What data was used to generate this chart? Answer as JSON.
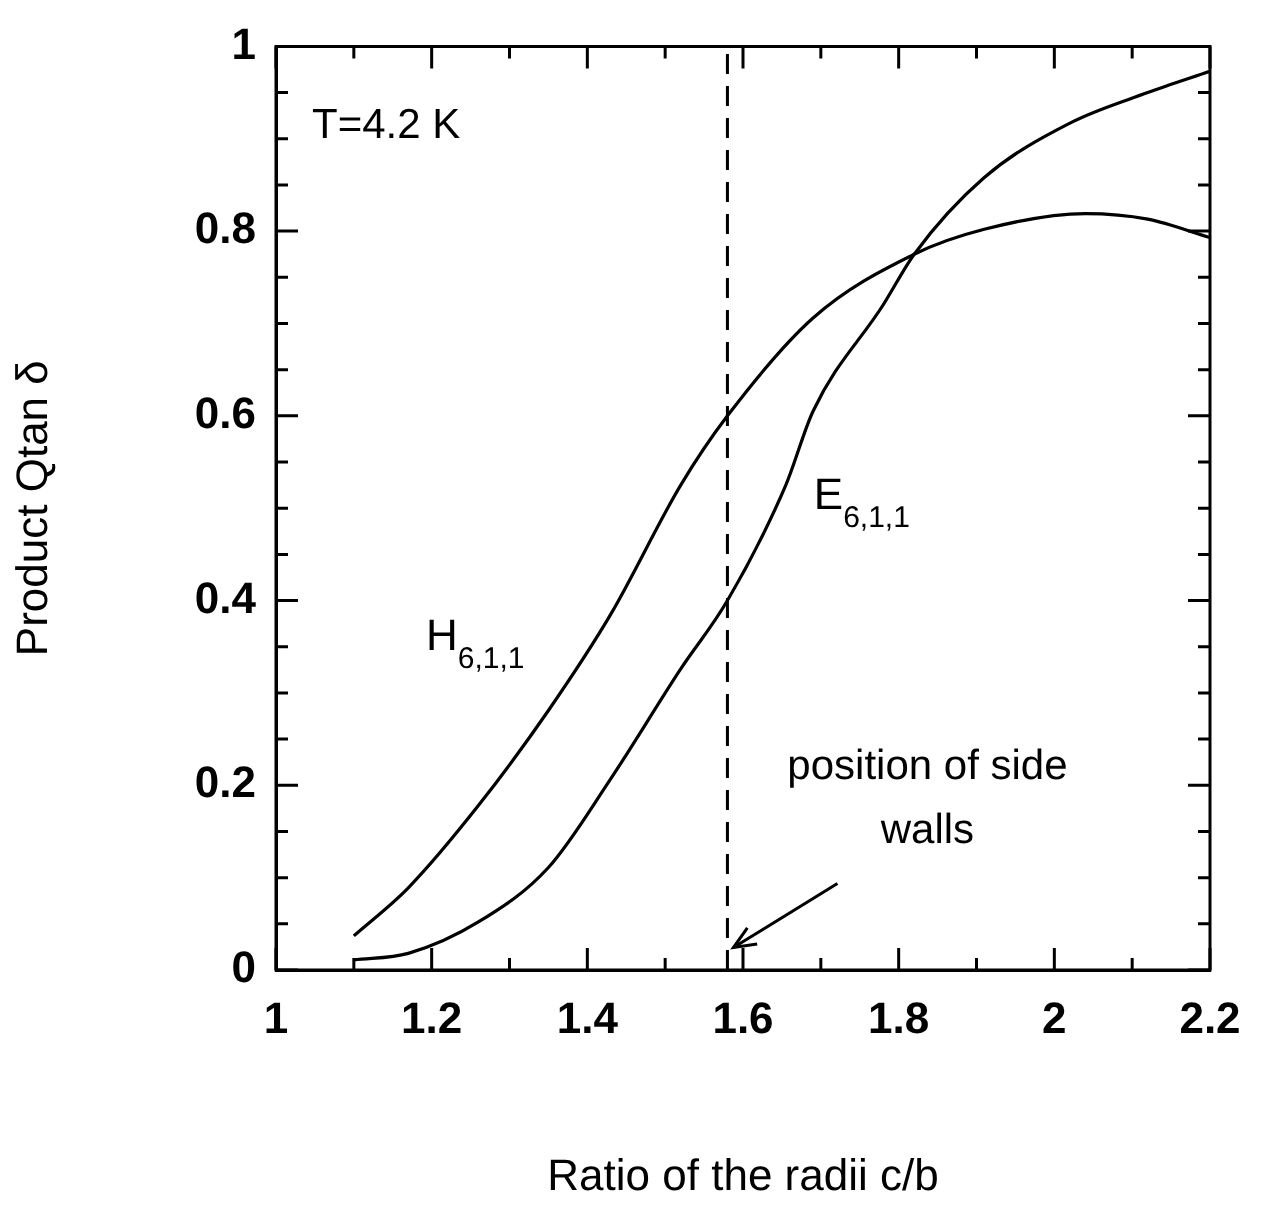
{
  "chart_data": {
    "type": "line",
    "xlabel": "Ratio of the radii c/b",
    "ylabel": "Product Qtan δ",
    "xlim": [
      1,
      2.2
    ],
    "ylim": [
      0,
      1
    ],
    "xticks": [
      1,
      {
        "value": 1.1,
        "label": null
      },
      1.2,
      {
        "value": 1.3,
        "label": null
      },
      1.4,
      {
        "value": 1.5,
        "label": null
      },
      1.6,
      {
        "value": 1.7,
        "label": null
      },
      1.8,
      {
        "value": 1.9,
        "label": null
      },
      2,
      {
        "value": 2.1,
        "label": null
      },
      2.2
    ],
    "yticks": [
      0,
      {
        "value": 0.05,
        "label": null
      },
      {
        "value": 0.1,
        "label": null
      },
      {
        "value": 0.15,
        "label": null
      },
      0.2,
      {
        "value": 0.25,
        "label": null
      },
      {
        "value": 0.3,
        "label": null
      },
      {
        "value": 0.35,
        "label": null
      },
      0.4,
      {
        "value": 0.45,
        "label": null
      },
      {
        "value": 0.5,
        "label": null
      },
      {
        "value": 0.55,
        "label": null
      },
      0.6,
      {
        "value": 0.65,
        "label": null
      },
      {
        "value": 0.7,
        "label": null
      },
      {
        "value": 0.75,
        "label": null
      },
      0.8,
      {
        "value": 0.85,
        "label": null
      },
      {
        "value": 0.9,
        "label": null
      },
      {
        "value": 0.95,
        "label": null
      },
      1
    ],
    "grid": false,
    "legend": false,
    "marker": "none",
    "line_style": "solid",
    "series": [
      {
        "name": "H$_{6,1,1}$",
        "color": "#000000",
        "x": [
          1.1,
          1.17,
          1.26,
          1.35,
          1.43,
          1.52,
          1.58,
          1.69,
          1.82,
          1.91,
          2.04,
          2.12,
          2.2
        ],
        "values": [
          0.037,
          0.089,
          0.178,
          0.281,
          0.385,
          0.525,
          0.6,
          0.706,
          0.775,
          0.802,
          0.819,
          0.813,
          0.793
        ]
      },
      {
        "name": "E$_{6,1,1}$",
        "color": "#000000",
        "x": [
          1.1,
          1.17,
          1.26,
          1.35,
          1.43,
          1.52,
          1.58,
          1.655,
          1.69,
          1.78,
          1.82,
          1.91,
          2.02,
          2.12,
          2.2
        ],
        "values": [
          0.011,
          0.018,
          0.052,
          0.111,
          0.207,
          0.326,
          0.4,
          0.525,
          0.605,
          0.72,
          0.775,
          0.858,
          0.917,
          0.95,
          0.973
        ]
      }
    ],
    "ref_lines": [
      {
        "axis": "x",
        "value": 1.58,
        "line_style": "dashed",
        "color": "#000000"
      }
    ],
    "annotations": [
      "T=4.2 K",
      {
        "text": "position of side walls",
        "x": 1.58,
        "y": 0.02
      }
    ]
  }
}
